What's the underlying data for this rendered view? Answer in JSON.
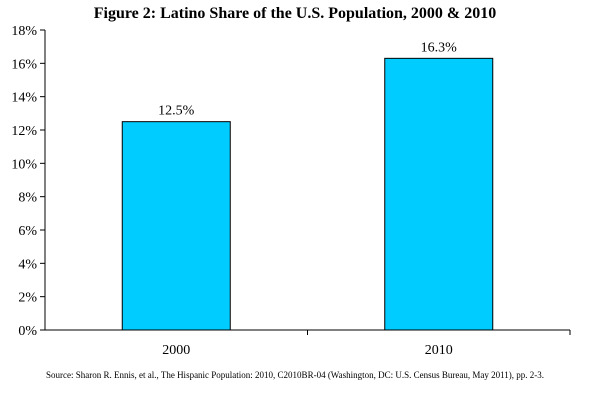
{
  "chart_data": {
    "type": "bar",
    "title": "Figure 2: Latino Share of the U.S. Population, 2000 & 2010",
    "categories": [
      "2000",
      "2010"
    ],
    "values": [
      12.5,
      16.3
    ],
    "data_labels": [
      "12.5%",
      "16.3%"
    ],
    "ylim": [
      0,
      18
    ],
    "y_ticks": [
      0,
      2,
      4,
      6,
      8,
      10,
      12,
      14,
      16,
      18
    ],
    "y_tick_labels": [
      "0%",
      "2%",
      "4%",
      "6%",
      "8%",
      "10%",
      "12%",
      "14%",
      "16%",
      "18%"
    ],
    "xlabel": "",
    "ylabel": "",
    "grid": false,
    "legend": "none",
    "bar_color": "#00ccff",
    "source": "Source: Sharon R. Ennis, et al., The Hispanic Population: 2010, C2010BR-04 (Washington, DC: U.S. Census Bureau, May 2011), pp. 2-3."
  }
}
